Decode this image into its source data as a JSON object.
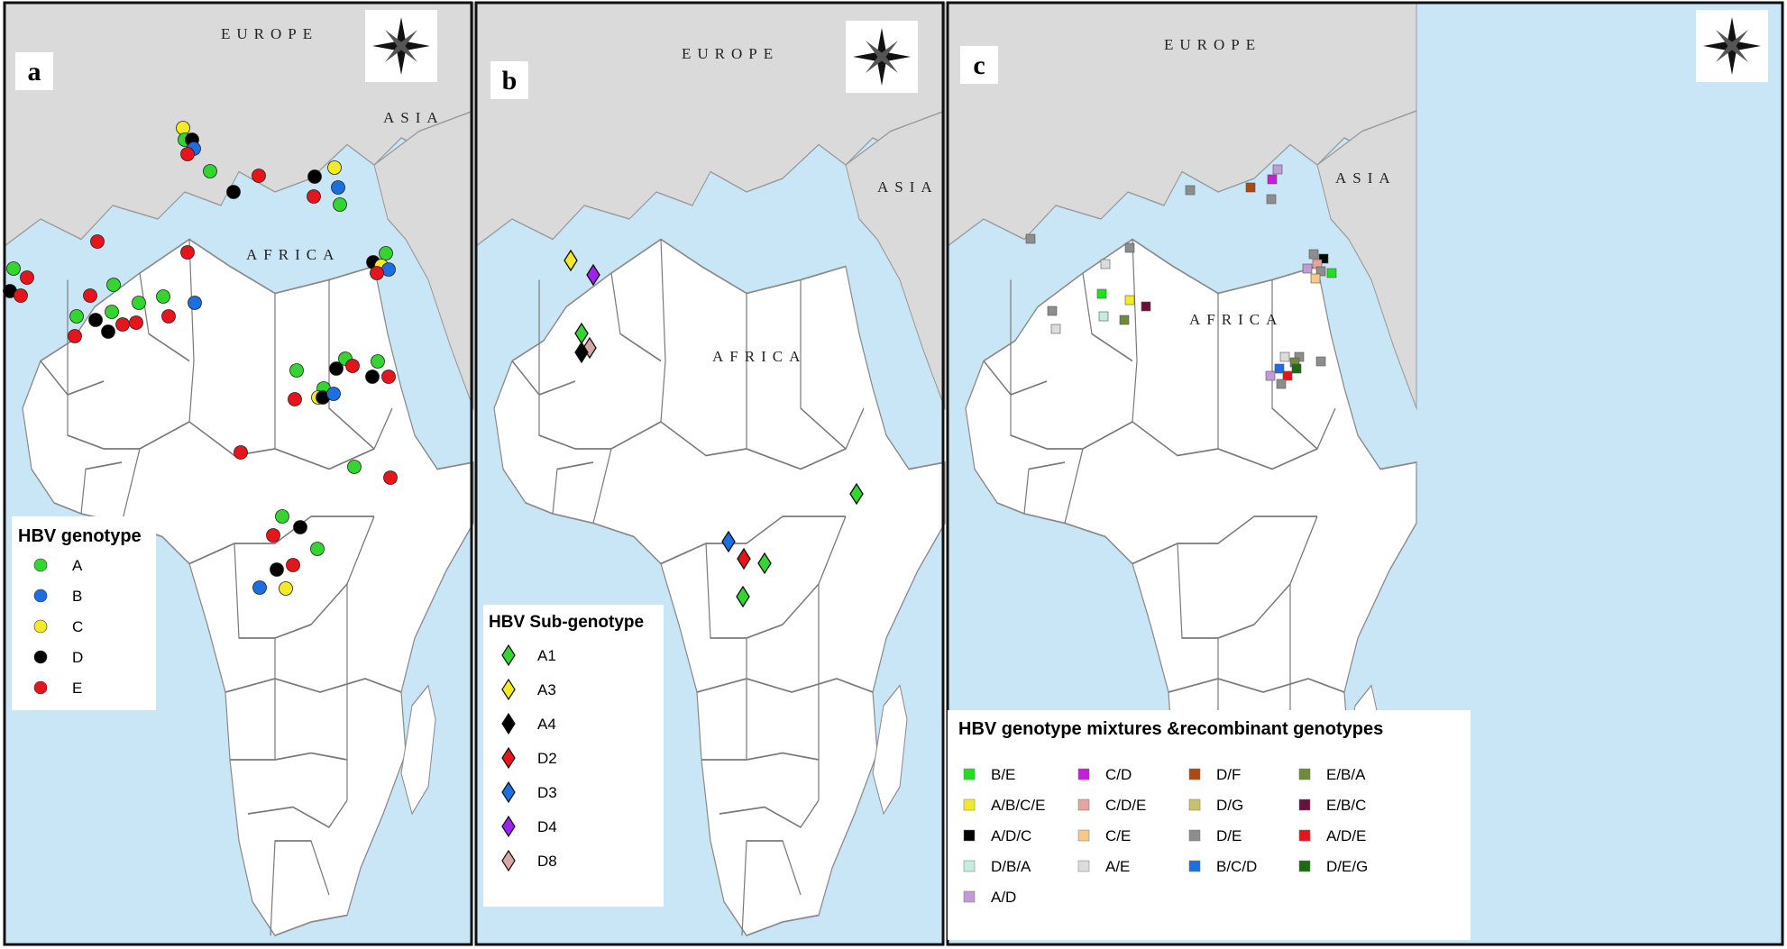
{
  "colors": {
    "sea": "#c9e6f6",
    "land_other": "#dadada",
    "africa": "#ffffff",
    "border": "#7a7a7a",
    "panel_frame": "#111111",
    "geno_A": "#33d62f",
    "geno_B": "#1c6fe0",
    "geno_C": "#f3ea25",
    "geno_D": "#000000",
    "geno_E": "#e8141c"
  },
  "panels": {
    "a": {
      "letter": "a",
      "regions": {
        "europe": "EUROPE",
        "asia": "ASIA",
        "africa": "AFRICA"
      },
      "legend": {
        "title": "HBV genotype",
        "items": [
          {
            "label": "A",
            "color": "#33d62f"
          },
          {
            "label": "B",
            "color": "#1c6fe0"
          },
          {
            "label": "C",
            "color": "#f3ea25"
          },
          {
            "label": "D",
            "color": "#000000"
          },
          {
            "label": "E",
            "color": "#e8141c"
          }
        ]
      }
    },
    "b": {
      "letter": "b",
      "regions": {
        "europe": "EUROPE",
        "asia": "ASIA",
        "africa": "AFRICA"
      },
      "legend": {
        "title": "HBV Sub-genotype",
        "items": [
          {
            "label": "A1",
            "color": "#33d62f"
          },
          {
            "label": "A3",
            "color": "#f3ea25"
          },
          {
            "label": "A4",
            "color": "#000000"
          },
          {
            "label": "D2",
            "color": "#e8141c"
          },
          {
            "label": "D3",
            "color": "#1c6fe0"
          },
          {
            "label": "D4",
            "color": "#a020f0"
          },
          {
            "label": "D8",
            "color": "#d8a8a6"
          }
        ]
      }
    },
    "c": {
      "letter": "c",
      "regions": {
        "europe": "EUROPE",
        "asia": "ASIA",
        "africa": "AFRICA"
      },
      "legend": {
        "title": "HBV genotype mixtures &recombinant genotypes",
        "items": [
          {
            "label": "B/E",
            "color": "#1ee01e"
          },
          {
            "label": "C/D",
            "color": "#c71ce0"
          },
          {
            "label": "D/F",
            "color": "#b0470f"
          },
          {
            "label": "E/B/A",
            "color": "#6f8a3a"
          },
          {
            "label": "A/B/C/E",
            "color": "#f3ea25"
          },
          {
            "label": "C/D/E",
            "color": "#e4a4a0"
          },
          {
            "label": "D/G",
            "color": "#c9c26a"
          },
          {
            "label": "E/B/C",
            "color": "#6b0f3c"
          },
          {
            "label": "A/D/C",
            "color": "#000000"
          },
          {
            "label": "C/E",
            "color": "#f7c985"
          },
          {
            "label": "D/E",
            "color": "#8d8d8d"
          },
          {
            "label": "A/D/E",
            "color": "#e8141c"
          },
          {
            "label": "D/B/A",
            "color": "#c4ece0"
          },
          {
            "label": "A/E",
            "color": "#dcdcdc"
          },
          {
            "label": "B/C/D",
            "color": "#1c6fe0"
          },
          {
            "label": "D/E/G",
            "color": "#1f6b14"
          },
          {
            "label": "A/D",
            "color": "#c39ad6"
          }
        ]
      }
    }
  }
}
